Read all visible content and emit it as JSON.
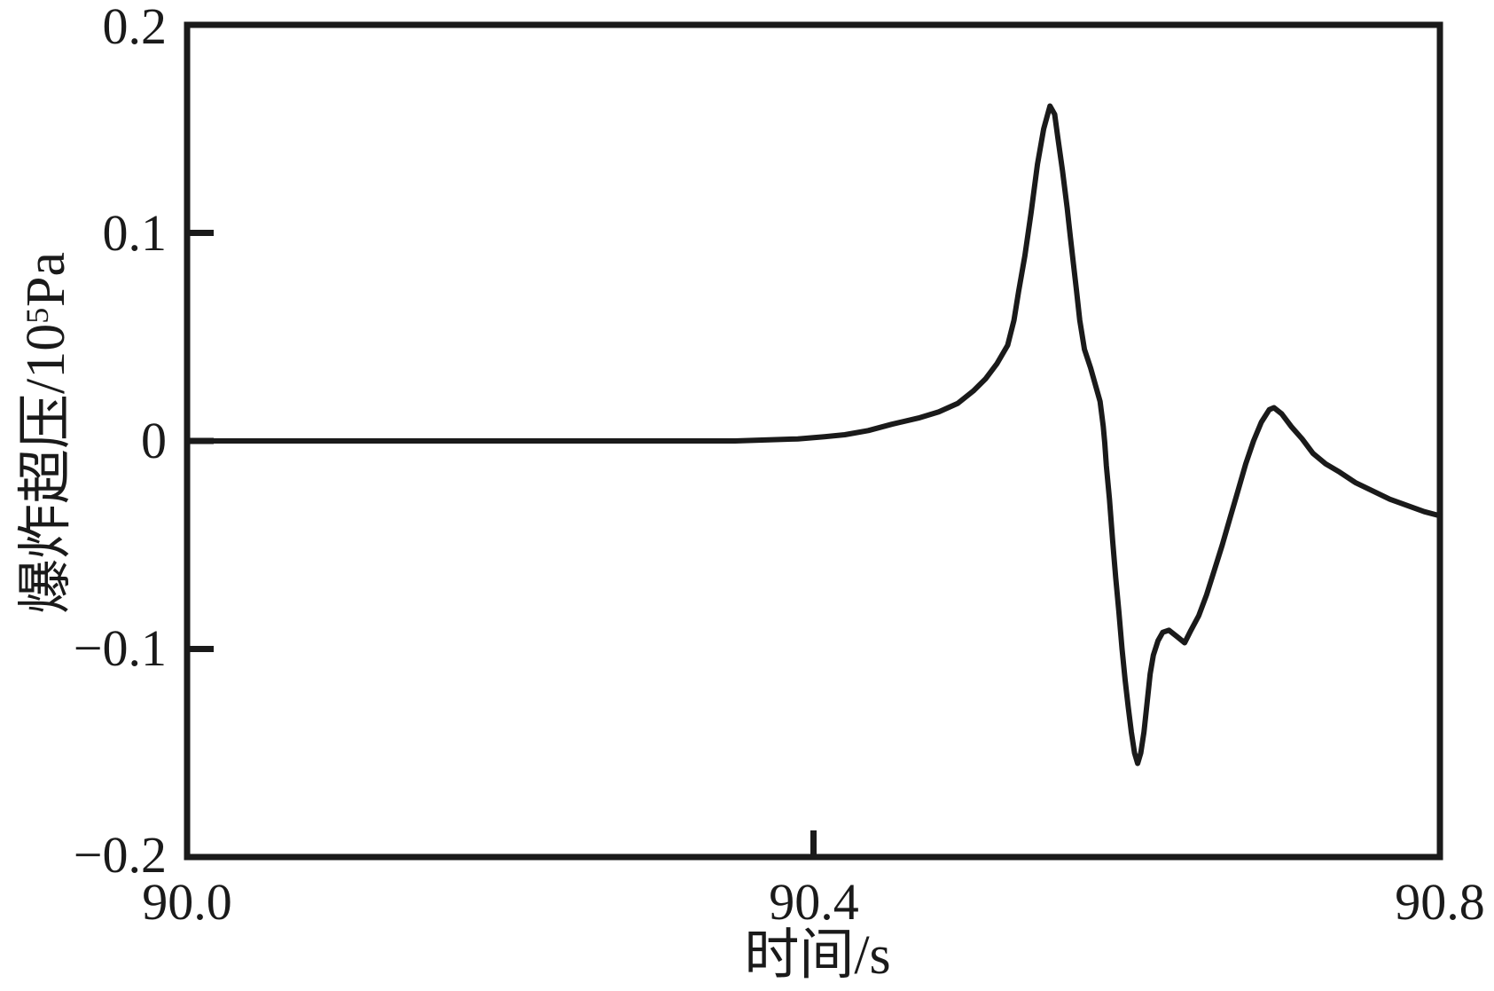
{
  "figure": {
    "x_axis_title": "时间/s",
    "y_axis_title_parts": {
      "prefix": "爆炸超压/10",
      "sup": "5",
      "suffix": "Pa"
    },
    "y_tick_labels": [
      "0.2",
      "0.1",
      "0",
      "−0.1",
      "−0.2"
    ],
    "x_tick_labels": [
      "90.0",
      "90.4",
      "90.8"
    ],
    "line_color": "#1a1a1a",
    "background_color": "#ffffff"
  },
  "chart_data": {
    "type": "line",
    "title": "",
    "xlabel": "时间/s",
    "ylabel": "爆炸超压/10^5Pa",
    "xlim": [
      90.0,
      90.8
    ],
    "ylim": [
      -0.2,
      0.2
    ],
    "x_tick_values": [
      90.0,
      90.4,
      90.8
    ],
    "y_tick_values": [
      -0.2,
      -0.1,
      0,
      0.1,
      0.2
    ],
    "grid": false,
    "legend": "none",
    "ticks_direction": "in",
    "series": [
      {
        "x": [
          90.0,
          90.05,
          90.1,
          90.15,
          90.2,
          90.25,
          90.3,
          90.35,
          90.39,
          90.407,
          90.42,
          90.435,
          90.45,
          90.467,
          90.48,
          90.492,
          90.502,
          90.51,
          90.517,
          90.524,
          90.528,
          90.531,
          90.535,
          90.539,
          90.543,
          90.547,
          90.551,
          90.554,
          90.556,
          90.559,
          90.562,
          90.564,
          90.566,
          90.568,
          90.57,
          90.573,
          90.577,
          90.58,
          90.583,
          90.585,
          90.586,
          90.587,
          90.589,
          90.591,
          90.593,
          90.595,
          90.597,
          90.599,
          90.601,
          90.603,
          90.605,
          90.607,
          90.609,
          90.611,
          90.613,
          90.615,
          90.617,
          90.62,
          90.623,
          90.627,
          90.632,
          90.637,
          90.641,
          90.646,
          90.651,
          90.656,
          90.661,
          90.666,
          90.671,
          90.676,
          90.681,
          90.686,
          90.691,
          90.694,
          90.699,
          90.705,
          90.712,
          90.719,
          90.727,
          90.736,
          90.746,
          90.757,
          90.768,
          90.779,
          90.79,
          90.8
        ],
        "y": [
          0,
          0,
          0,
          0,
          0,
          0,
          0,
          0,
          0.001,
          0.002,
          0.003,
          0.005,
          0.008,
          0.011,
          0.014,
          0.018,
          0.024,
          0.03,
          0.037,
          0.046,
          0.058,
          0.072,
          0.089,
          0.11,
          0.133,
          0.15,
          0.161,
          0.157,
          0.146,
          0.13,
          0.112,
          0.098,
          0.085,
          0.072,
          0.058,
          0.044,
          0.035,
          0.027,
          0.019,
          0.007,
          -0.001,
          -0.012,
          -0.028,
          -0.048,
          -0.066,
          -0.082,
          -0.1,
          -0.115,
          -0.128,
          -0.14,
          -0.15,
          -0.155,
          -0.15,
          -0.14,
          -0.126,
          -0.112,
          -0.103,
          -0.096,
          -0.092,
          -0.091,
          -0.094,
          -0.097,
          -0.091,
          -0.084,
          -0.074,
          -0.062,
          -0.05,
          -0.037,
          -0.024,
          -0.011,
          0.0,
          0.009,
          0.015,
          0.016,
          0.013,
          0.007,
          0.001,
          -0.006,
          -0.011,
          -0.015,
          -0.02,
          -0.024,
          -0.028,
          -0.031,
          -0.034,
          -0.036
        ]
      }
    ],
    "annotations": {
      "peak": {
        "t": 90.551,
        "value": 0.161
      },
      "trough": {
        "t": 90.607,
        "value": -0.155
      },
      "secondary_bump": {
        "t": 90.627,
        "value": -0.091
      },
      "second_peak": {
        "t": 90.694,
        "value": 0.016
      },
      "end_value": {
        "t": 90.8,
        "value": -0.036
      }
    }
  }
}
